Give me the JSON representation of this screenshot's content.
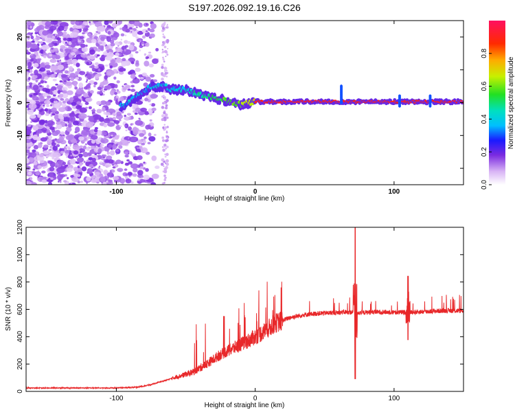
{
  "title": "S197.2026.092.19.16.C26",
  "colors": {
    "snr_line": "#e8282a",
    "spectro_bg": "#ffffff",
    "axis": "#000000"
  },
  "chart_data": [
    {
      "type": "heatmap",
      "name": "spectrogram",
      "xlabel": "Height of straight line (km)",
      "ylabel": "Frequency (Hz)",
      "xlim": [
        -165,
        150
      ],
      "ylim": [
        -25,
        25
      ],
      "x_ticks": [
        -100,
        0,
        100
      ],
      "x_tick_labels": [
        "-100",
        "0",
        "100"
      ],
      "y_ticks": [
        -20,
        -10,
        0,
        10,
        20
      ],
      "y_tick_labels": [
        "-20",
        "-10",
        "0",
        "10",
        "20"
      ],
      "ridge": {
        "description_points_x": [
          -95,
          -85,
          -75,
          -65,
          -60,
          -50,
          -40,
          -30,
          -20,
          -10,
          0,
          20,
          40,
          60,
          80,
          100,
          120,
          150
        ],
        "description_points_y": [
          -1,
          2,
          5,
          5,
          4,
          4,
          2.5,
          1.5,
          0.5,
          -0.5,
          0.3,
          0.3,
          0.3,
          0.3,
          0.3,
          0.3,
          0.3,
          0.3
        ],
        "peak_amplitude": 1.0
      },
      "colorbar": {
        "label": "Normalized spectral amplitude",
        "ticks": [
          0.0,
          0.2,
          0.4,
          0.6,
          0.8
        ],
        "tick_labels": [
          "0.0",
          "0.2",
          "0.4",
          "0.6",
          "0.8"
        ],
        "range": [
          0,
          1
        ],
        "colormap": "rainbow (white → violet → blue → cyan → green → yellow → red → magenta)"
      }
    },
    {
      "type": "line",
      "name": "snr",
      "xlabel": "Height of straight line (km)",
      "ylabel": "SNR (10 * v/v)",
      "xlim": [
        -165,
        150
      ],
      "ylim": [
        0,
        1200
      ],
      "x_ticks": [
        -100,
        0,
        100
      ],
      "x_tick_labels": [
        "-100",
        "0",
        "100"
      ],
      "y_ticks": [
        0,
        200,
        400,
        600,
        800,
        1000,
        1200
      ],
      "y_tick_labels": [
        "0",
        "200",
        "400",
        "600",
        "800",
        "1000",
        "1200"
      ],
      "baseline_x": [
        -165,
        -100,
        -85,
        -75,
        -65,
        -55,
        -45,
        -35,
        -25,
        -15,
        -5,
        5,
        15,
        25,
        35,
        45,
        55,
        65,
        75,
        85,
        95,
        105,
        115,
        125,
        135,
        150
      ],
      "baseline_y": [
        25,
        25,
        30,
        50,
        80,
        110,
        140,
        200,
        270,
        320,
        370,
        430,
        500,
        540,
        560,
        570,
        575,
        580,
        575,
        580,
        580,
        578,
        580,
        585,
        590,
        590
      ],
      "spikes": [
        {
          "x": 72,
          "max": 1220,
          "min": 90
        },
        {
          "x": 110,
          "max": 845,
          "min": 375
        }
      ]
    }
  ]
}
